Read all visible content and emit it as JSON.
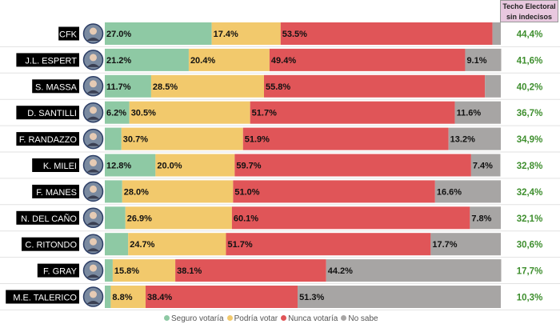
{
  "header": {
    "techo_line1": "Techo Electoral",
    "techo_line2": "sin indecisos"
  },
  "colors": {
    "seguro": "#8ec9a4",
    "podria": "#f2c96c",
    "nunca": "#e05558",
    "nosabe": "#a7a5a4",
    "techo_text": "#3f8f2f",
    "label_bg": "#000000",
    "label_text": "#ffffff"
  },
  "chart_data": {
    "type": "bar",
    "orientation": "horizontal",
    "stacked": true,
    "xlim": [
      0,
      100
    ],
    "categories": [
      "CFK",
      "J.L. ESPERT",
      "S. MASSA",
      "D. SANTILLI",
      "F. RANDAZZO",
      "K. MILEI",
      "F. MANES",
      "N. DEL CAÑO",
      "C. RITONDO",
      "F. GRAY",
      "M.E. TALERICO"
    ],
    "series": [
      {
        "name": "Seguro votaría",
        "color_key": "seguro",
        "values": [
          27.0,
          21.2,
          11.7,
          6.2,
          4.2,
          12.8,
          4.4,
          5.2,
          5.9,
          2.0,
          1.5
        ],
        "labels": [
          "27.0%",
          "21.2%",
          "11.7%",
          "6.2%",
          "",
          "12.8%",
          "",
          "",
          "",
          "",
          ""
        ]
      },
      {
        "name": "Podría votar",
        "color_key": "podria",
        "values": [
          17.4,
          20.4,
          28.5,
          30.5,
          30.7,
          20.0,
          28.0,
          26.9,
          24.7,
          15.8,
          8.8
        ],
        "labels": [
          "17.4%",
          "20.4%",
          "28.5%",
          "30.5%",
          "30.7%",
          "20.0%",
          "28.0%",
          "26.9%",
          "24.7%",
          "15.8%",
          "8.8%"
        ]
      },
      {
        "name": "Nunca votaría",
        "color_key": "nunca",
        "values": [
          53.5,
          49.4,
          55.8,
          51.7,
          51.9,
          59.7,
          51.0,
          60.1,
          51.7,
          38.1,
          38.4
        ],
        "labels": [
          "53.5%",
          "49.4%",
          "55.8%",
          "51.7%",
          "51.9%",
          "59.7%",
          "51.0%",
          "60.1%",
          "51.7%",
          "38.1%",
          "38.4%"
        ]
      },
      {
        "name": "No sabe",
        "color_key": "nosabe",
        "values": [
          2.1,
          9.1,
          4.0,
          11.6,
          13.2,
          7.4,
          16.6,
          7.8,
          17.7,
          44.2,
          51.3
        ],
        "labels": [
          "",
          "9.1%",
          "",
          "11.6%",
          "13.2%",
          "7.4%",
          "16.6%",
          "7.8%",
          "17.7%",
          "44.2%",
          "51.3%"
        ]
      }
    ],
    "techo": [
      "44,4%",
      "41,6%",
      "40,2%",
      "36,7%",
      "34,9%",
      "32,8%",
      "32,4%",
      "32,1%",
      "30,6%",
      "17,7%",
      "10,3%"
    ],
    "legend_position": "bottom"
  }
}
